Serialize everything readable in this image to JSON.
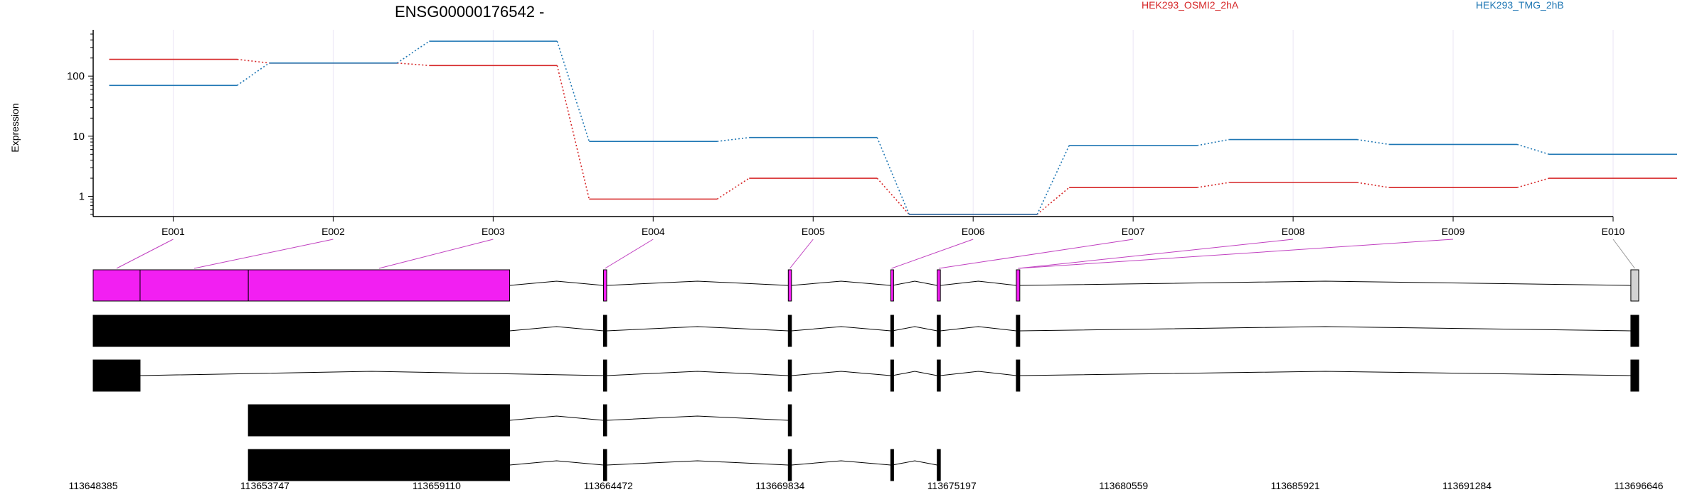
{
  "chart_data": {
    "type": "line",
    "title": "ENSG00000176542 -",
    "ylabel": "Expression",
    "yscale": "log",
    "ylim": [
      0.5,
      500
    ],
    "yticks": [
      {
        "value": 1,
        "label": "1"
      },
      {
        "value": 10,
        "label": "10"
      },
      {
        "value": 100,
        "label": "100"
      }
    ],
    "categories": [
      "E001",
      "E002",
      "E003",
      "E004",
      "E005",
      "E006",
      "E007",
      "E008",
      "E009",
      "E010"
    ],
    "series": [
      {
        "name": "HEK293_OSMI2_2hA",
        "color": "#d62728",
        "values": [
          190,
          165,
          150,
          0.9,
          2.0,
          0.5,
          1.4,
          1.7,
          1.4,
          2.0
        ]
      },
      {
        "name": "HEK293_TMG_2hB",
        "color": "#1f77b4",
        "values": [
          70,
          165,
          380,
          8.2,
          9.5,
          0.5,
          7.0,
          8.8,
          7.3,
          5.0
        ]
      }
    ],
    "genomic_axis": {
      "ticks": [
        "113648385",
        "113653747",
        "113659110",
        "113664472",
        "113669834",
        "113675197",
        "113680559",
        "113685921",
        "113691284",
        "113696646"
      ],
      "start": 113648385,
      "end": 113696646
    },
    "exon_panel": {
      "exons": [
        {
          "id": "E001",
          "start": 113648385,
          "end": 113649850
        },
        {
          "id": "E002",
          "start": 113649850,
          "end": 113653230
        },
        {
          "id": "E003",
          "start": 113653230,
          "end": 113661390
        },
        {
          "id": "E004",
          "start": 113664320,
          "end": 113664420
        },
        {
          "id": "E005",
          "start": 113670090,
          "end": 113670190
        },
        {
          "id": "E006",
          "start": 113673290,
          "end": 113673340
        },
        {
          "id": "E007",
          "start": 113674740,
          "end": 113674840
        },
        {
          "id": "E008",
          "start": 113677210,
          "end": 113677320
        },
        {
          "id": "E009",
          "start": 113677210,
          "end": 113677320
        },
        {
          "id": "E010",
          "start": 113696400,
          "end": 113696646
        }
      ],
      "highlight_color": "#f21ff2",
      "unexpressed_color": "#d3d3d3"
    },
    "transcripts": [
      {
        "blocks": [
          [
            113648385,
            113661390
          ],
          [
            113664320,
            113664420
          ],
          [
            113670090,
            113670190
          ],
          [
            113673290,
            113673340
          ],
          [
            113674740,
            113674840
          ],
          [
            113677210,
            113677320
          ],
          [
            113696400,
            113696646
          ]
        ]
      },
      {
        "blocks": [
          [
            113648385,
            113649850
          ],
          [
            113664320,
            113664420
          ],
          [
            113670090,
            113670190
          ],
          [
            113673290,
            113673340
          ],
          [
            113674740,
            113674840
          ],
          [
            113677210,
            113677320
          ],
          [
            113696400,
            113696646
          ]
        ]
      },
      {
        "blocks": [
          [
            113653230,
            113661390
          ],
          [
            113664320,
            113664420
          ],
          [
            113670090,
            113670190
          ]
        ]
      },
      {
        "blocks": [
          [
            113653230,
            113661390
          ],
          [
            113664320,
            113664420
          ],
          [
            113670090,
            113670190
          ],
          [
            113673290,
            113673340
          ],
          [
            113674740,
            113674840
          ]
        ]
      }
    ]
  }
}
